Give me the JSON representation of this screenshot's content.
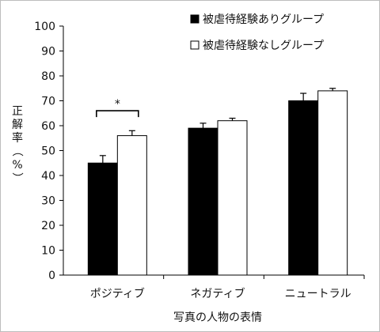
{
  "chart_data": {
    "type": "bar",
    "categories": [
      "ポジティブ",
      "ネガティブ",
      "ニュートラル"
    ],
    "series": [
      {
        "name": "被虐待経験ありグループ",
        "values": [
          45,
          59,
          70
        ],
        "errors": [
          3,
          2,
          3
        ],
        "color": "#000000"
      },
      {
        "name": "被虐待経験なしグループ",
        "values": [
          56,
          62,
          74
        ],
        "errors": [
          2,
          1,
          1
        ],
        "color": "#ffffff"
      }
    ],
    "xlabel": "写真の人物の表情",
    "ylabel": "正解率（%）",
    "ylim": [
      0,
      100
    ],
    "yticks": [
      0,
      10,
      20,
      30,
      40,
      50,
      60,
      70,
      80,
      90,
      100
    ],
    "grid": false,
    "legend_position": "top-right",
    "annotations": [
      {
        "text": "*",
        "category": "ポジティブ"
      }
    ]
  }
}
